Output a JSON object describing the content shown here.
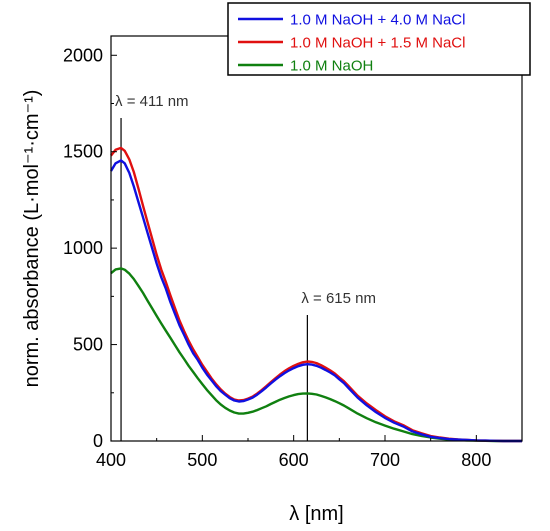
{
  "chart_data": {
    "type": "line",
    "xlabel": "λ [nm]",
    "ylabel": "norm. absorbance (L·mol⁻¹·cm⁻¹)",
    "xlim": [
      400,
      850
    ],
    "ylim": [
      0,
      2100
    ],
    "xticks": [
      400,
      500,
      600,
      700,
      800
    ],
    "yticks": [
      0,
      500,
      1000,
      1500,
      2000
    ],
    "legend_position": "top-right",
    "series": [
      {
        "name": "1.0 M NaOH + 4.0 M NaCl",
        "color": "#1010e0",
        "x": [
          400,
          405,
          411,
          415,
          420,
          425,
          430,
          435,
          440,
          445,
          450,
          455,
          460,
          465,
          470,
          475,
          480,
          485,
          490,
          495,
          500,
          505,
          510,
          515,
          520,
          525,
          530,
          535,
          540,
          545,
          550,
          555,
          560,
          565,
          570,
          575,
          580,
          585,
          590,
          595,
          600,
          605,
          610,
          615,
          620,
          625,
          630,
          635,
          640,
          645,
          650,
          655,
          660,
          670,
          680,
          690,
          700,
          710,
          720,
          730,
          740,
          750,
          760,
          770,
          780,
          790,
          800,
          810,
          820,
          830,
          840,
          850
        ],
        "y": [
          1400,
          1440,
          1455,
          1440,
          1390,
          1320,
          1240,
          1160,
          1080,
          1000,
          920,
          850,
          790,
          720,
          660,
          600,
          550,
          500,
          455,
          420,
          380,
          345,
          315,
          285,
          260,
          240,
          222,
          210,
          205,
          207,
          215,
          225,
          240,
          258,
          278,
          298,
          318,
          336,
          352,
          366,
          378,
          388,
          395,
          398,
          396,
          390,
          380,
          368,
          355,
          340,
          320,
          300,
          275,
          225,
          185,
          150,
          120,
          95,
          75,
          50,
          35,
          22,
          15,
          10,
          7,
          5,
          3,
          2,
          1,
          0,
          0,
          0
        ]
      },
      {
        "name": "1.0 M NaOH + 1.5 M NaCl",
        "color": "#e01010",
        "x": [
          400,
          405,
          411,
          415,
          420,
          425,
          430,
          435,
          440,
          445,
          450,
          455,
          460,
          465,
          470,
          475,
          480,
          485,
          490,
          495,
          500,
          505,
          510,
          515,
          520,
          525,
          530,
          535,
          540,
          545,
          550,
          555,
          560,
          565,
          570,
          575,
          580,
          585,
          590,
          595,
          600,
          605,
          610,
          615,
          620,
          625,
          630,
          635,
          640,
          645,
          650,
          655,
          660,
          670,
          680,
          690,
          700,
          710,
          720,
          730,
          740,
          750,
          760,
          770,
          780,
          790,
          800,
          810,
          820,
          830,
          840,
          850
        ],
        "y": [
          1480,
          1510,
          1520,
          1505,
          1460,
          1395,
          1310,
          1220,
          1135,
          1050,
          965,
          890,
          825,
          755,
          690,
          625,
          570,
          520,
          475,
          435,
          395,
          360,
          325,
          295,
          268,
          246,
          228,
          215,
          210,
          212,
          220,
          230,
          246,
          264,
          284,
          305,
          325,
          345,
          362,
          377,
          390,
          400,
          408,
          412,
          410,
          404,
          393,
          380,
          366,
          350,
          330,
          310,
          285,
          235,
          195,
          160,
          128,
          102,
          82,
          56,
          40,
          26,
          18,
          12,
          8,
          5,
          3,
          2,
          1,
          0,
          0,
          0
        ]
      },
      {
        "name": "1.0 M NaOH",
        "color": "#108010",
        "x": [
          400,
          405,
          411,
          415,
          420,
          425,
          430,
          435,
          440,
          445,
          450,
          455,
          460,
          465,
          470,
          475,
          480,
          485,
          490,
          495,
          500,
          505,
          510,
          515,
          520,
          525,
          530,
          535,
          540,
          545,
          550,
          555,
          560,
          565,
          570,
          575,
          580,
          585,
          590,
          595,
          600,
          605,
          610,
          615,
          620,
          625,
          630,
          635,
          640,
          645,
          650,
          655,
          660,
          670,
          680,
          690,
          700,
          710,
          720,
          730,
          740,
          750,
          760,
          770,
          780,
          790,
          800,
          810,
          820,
          830,
          840,
          850
        ],
        "y": [
          870,
          890,
          895,
          888,
          868,
          840,
          805,
          768,
          728,
          688,
          648,
          610,
          572,
          535,
          498,
          460,
          425,
          390,
          358,
          325,
          295,
          265,
          238,
          212,
          190,
          172,
          158,
          148,
          142,
          142,
          146,
          152,
          160,
          170,
          180,
          192,
          203,
          214,
          223,
          231,
          238,
          243,
          246,
          247,
          245,
          241,
          234,
          226,
          217,
          207,
          196,
          184,
          170,
          142,
          118,
          97,
          80,
          64,
          50,
          36,
          26,
          18,
          12,
          8,
          5,
          3,
          2,
          1,
          0,
          0,
          0,
          0
        ]
      }
    ],
    "annotations": [
      {
        "text": "λ = 411 nm",
        "x": 411
      },
      {
        "text": "λ = 615 nm",
        "x": 615
      }
    ]
  }
}
